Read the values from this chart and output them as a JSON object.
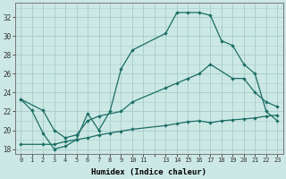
{
  "xlabel": "Humidex (Indice chaleur)",
  "bg_color": "#cce8e5",
  "grid_color": "#aacfcc",
  "line_color": "#1a6e64",
  "xlim": [
    -0.5,
    23.5
  ],
  "ylim": [
    17.5,
    33.5
  ],
  "xtick_labels": [
    "0",
    "1",
    "2",
    "3",
    "4",
    "5",
    "6",
    "7",
    "8",
    "9",
    "10",
    "11",
    "",
    "13",
    "14",
    "15",
    "16",
    "17",
    "18",
    "19",
    "20",
    "21",
    "22",
    "23"
  ],
  "ytick_values": [
    18,
    20,
    22,
    24,
    26,
    28,
    30,
    32
  ],
  "series": [
    {
      "x": [
        0,
        1,
        2,
        3,
        4,
        5,
        6,
        7,
        8,
        9,
        10,
        13,
        14,
        15,
        16,
        17,
        18,
        19,
        20,
        21,
        22,
        23
      ],
      "y": [
        23.3,
        22.1,
        19.7,
        18.0,
        18.3,
        19.0,
        21.8,
        20.0,
        22.0,
        26.5,
        28.5,
        30.3,
        32.5,
        32.5,
        32.5,
        32.2,
        29.5,
        29.0,
        27.0,
        26.0,
        22.0,
        21.0
      ]
    },
    {
      "x": [
        0,
        2,
        3,
        4,
        5,
        6,
        7,
        9,
        10,
        13,
        14,
        15,
        16,
        17,
        19,
        20,
        21,
        22,
        23
      ],
      "y": [
        23.3,
        22.1,
        20.0,
        19.2,
        19.5,
        21.0,
        21.5,
        22.0,
        23.0,
        24.5,
        25.0,
        25.5,
        26.0,
        27.0,
        25.5,
        25.5,
        24.0,
        23.0,
        22.5
      ]
    },
    {
      "x": [
        0,
        2,
        3,
        4,
        5,
        6,
        7,
        8,
        9,
        10,
        13,
        14,
        15,
        16,
        17,
        18,
        19,
        20,
        21,
        22,
        23
      ],
      "y": [
        18.5,
        18.5,
        18.5,
        18.8,
        19.0,
        19.2,
        19.5,
        19.7,
        19.9,
        20.1,
        20.5,
        20.7,
        20.9,
        21.0,
        20.8,
        21.0,
        21.1,
        21.2,
        21.3,
        21.5,
        21.6
      ]
    }
  ]
}
